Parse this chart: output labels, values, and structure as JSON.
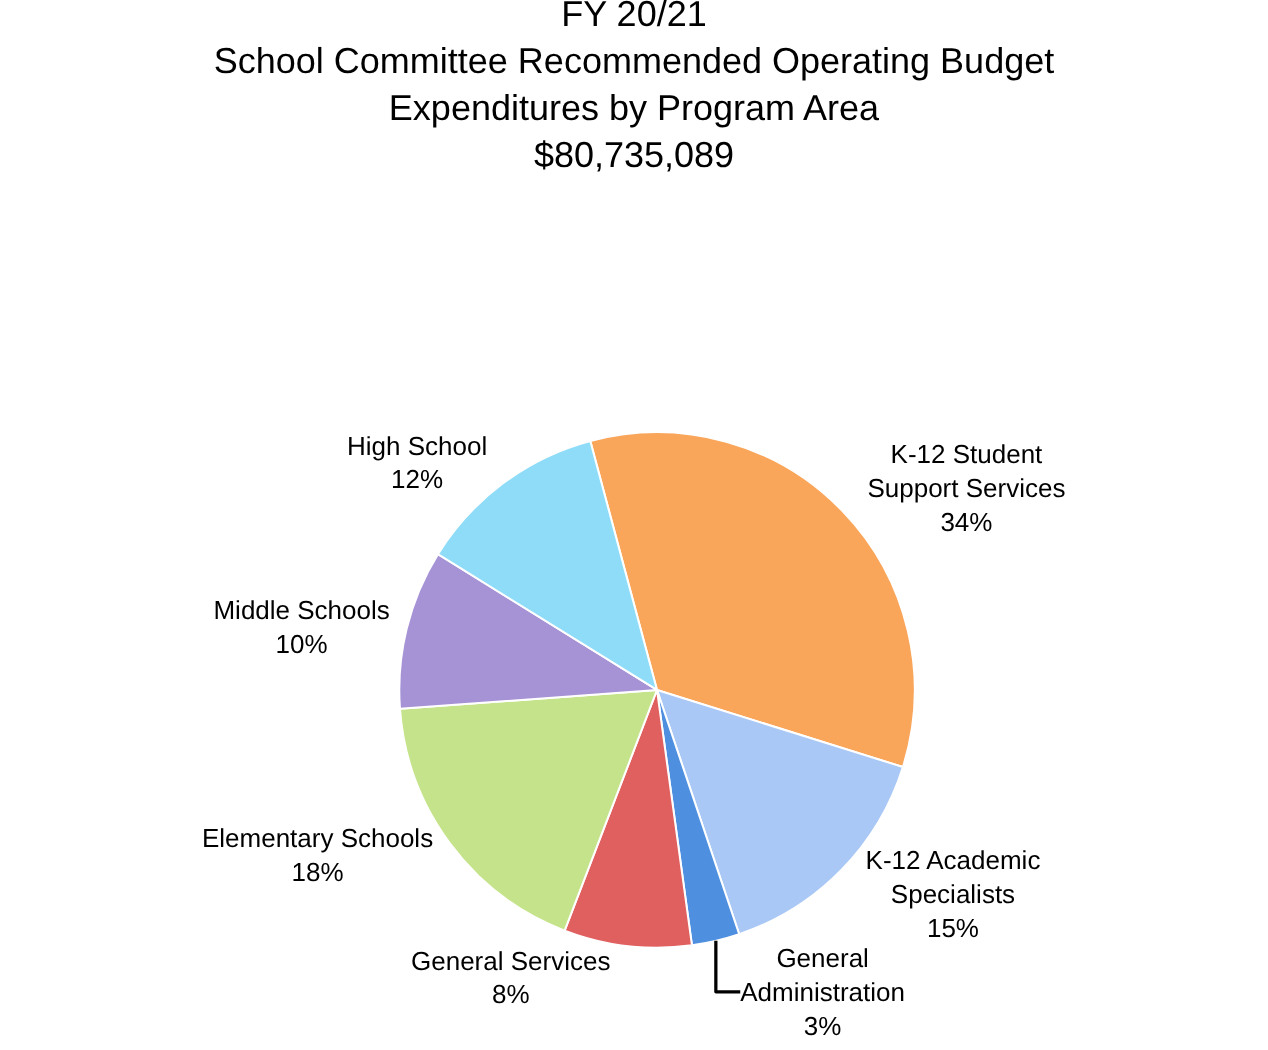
{
  "chart_data": {
    "type": "pie",
    "title": "FY 20/21\nSchool Committee Recommended Operating Budget\nExpenditures by Program Area\n$80,735,089",
    "categories": [
      "K-12 Student Support Services",
      "K-12 Academic Specialists",
      "General Administration",
      "General Services",
      "Elementary Schools",
      "Middle Schools",
      "High School"
    ],
    "values": [
      34,
      15,
      3,
      8,
      18,
      10,
      12
    ],
    "value_labels": [
      "34%",
      "15%",
      "3%",
      "8%",
      "18%",
      "10%",
      "12%"
    ],
    "colors": [
      "#f9a55a",
      "#a9c8f5",
      "#4f8fe0",
      "#e06060",
      "#c5e38a",
      "#a693d6",
      "#8fdcf8"
    ],
    "legend": false
  }
}
